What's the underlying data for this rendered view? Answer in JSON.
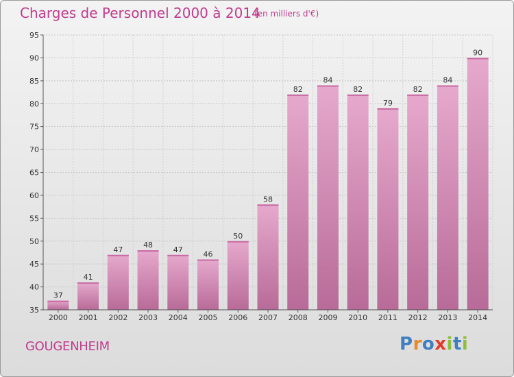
{
  "title": "Charges de Personnel 2000 à 2014",
  "subtitle": "(en milliers d'€)",
  "city": "GOUGENHEIM",
  "logo": {
    "text": "Proxiti",
    "letters": [
      "P",
      "r",
      "o",
      "x",
      "i",
      "t",
      "i"
    ],
    "colors": [
      "#3f7fc0",
      "#e8892a",
      "#3f7fc0",
      "#e23b2a",
      "#8cbf3f",
      "#3f7fc0",
      "#8cbf3f"
    ]
  },
  "colors": {
    "bar": "#d67fb1",
    "bar_light": "#e3a8cb",
    "bar_dark": "#c86aa2",
    "text_accent": "#c03b8d"
  },
  "chart_data": {
    "type": "bar",
    "title": "Charges de Personnel 2000 à 2014",
    "subtitle": "(en milliers d'€)",
    "categories": [
      "2000",
      "2001",
      "2002",
      "2003",
      "2004",
      "2005",
      "2006",
      "2007",
      "2008",
      "2009",
      "2010",
      "2011",
      "2012",
      "2013",
      "2014"
    ],
    "values": [
      37,
      41,
      47,
      48,
      47,
      46,
      50,
      58,
      82,
      84,
      82,
      79,
      82,
      84,
      90
    ],
    "ylim": [
      35,
      95
    ],
    "yticks": [
      35,
      40,
      45,
      50,
      55,
      60,
      65,
      70,
      75,
      80,
      85,
      90,
      95
    ],
    "grid": true,
    "data_labels": true
  }
}
